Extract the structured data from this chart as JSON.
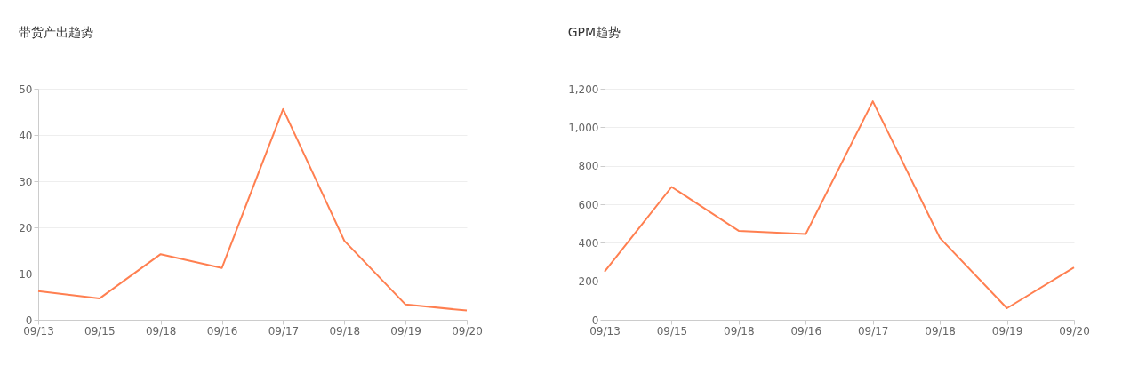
{
  "chart_data": [
    {
      "type": "line",
      "title": "带货产出趋势",
      "categories": [
        "09/13",
        "09/15",
        "09/18",
        "09/16",
        "09/17",
        "09/18",
        "09/19",
        "09/20"
      ],
      "series": [
        {
          "color": "#ff7f50",
          "values": [
            6.2,
            4.6,
            14.2,
            11.2,
            45.6,
            17.1,
            3.3,
            2.0
          ]
        }
      ],
      "ylim": [
        0,
        50
      ],
      "yticks": [
        0,
        10,
        20,
        30,
        40,
        50
      ],
      "grid": "y",
      "marker": "none",
      "line_style": "solid"
    },
    {
      "type": "line",
      "title": "GPM趋势",
      "categories": [
        "09/13",
        "09/15",
        "09/18",
        "09/16",
        "09/17",
        "09/18",
        "09/19",
        "09/20"
      ],
      "series": [
        {
          "color": "#ff7f50",
          "values": [
            250,
            690,
            462,
            445,
            1135,
            425,
            60,
            272
          ]
        }
      ],
      "ylim": [
        0,
        1200
      ],
      "yticks": [
        0,
        200,
        400,
        600,
        800,
        {
          "value": 1000,
          "label": "1,000"
        },
        {
          "value": 1200,
          "label": "1,200"
        }
      ],
      "grid": "y",
      "marker": "none",
      "line_style": "solid"
    }
  ]
}
